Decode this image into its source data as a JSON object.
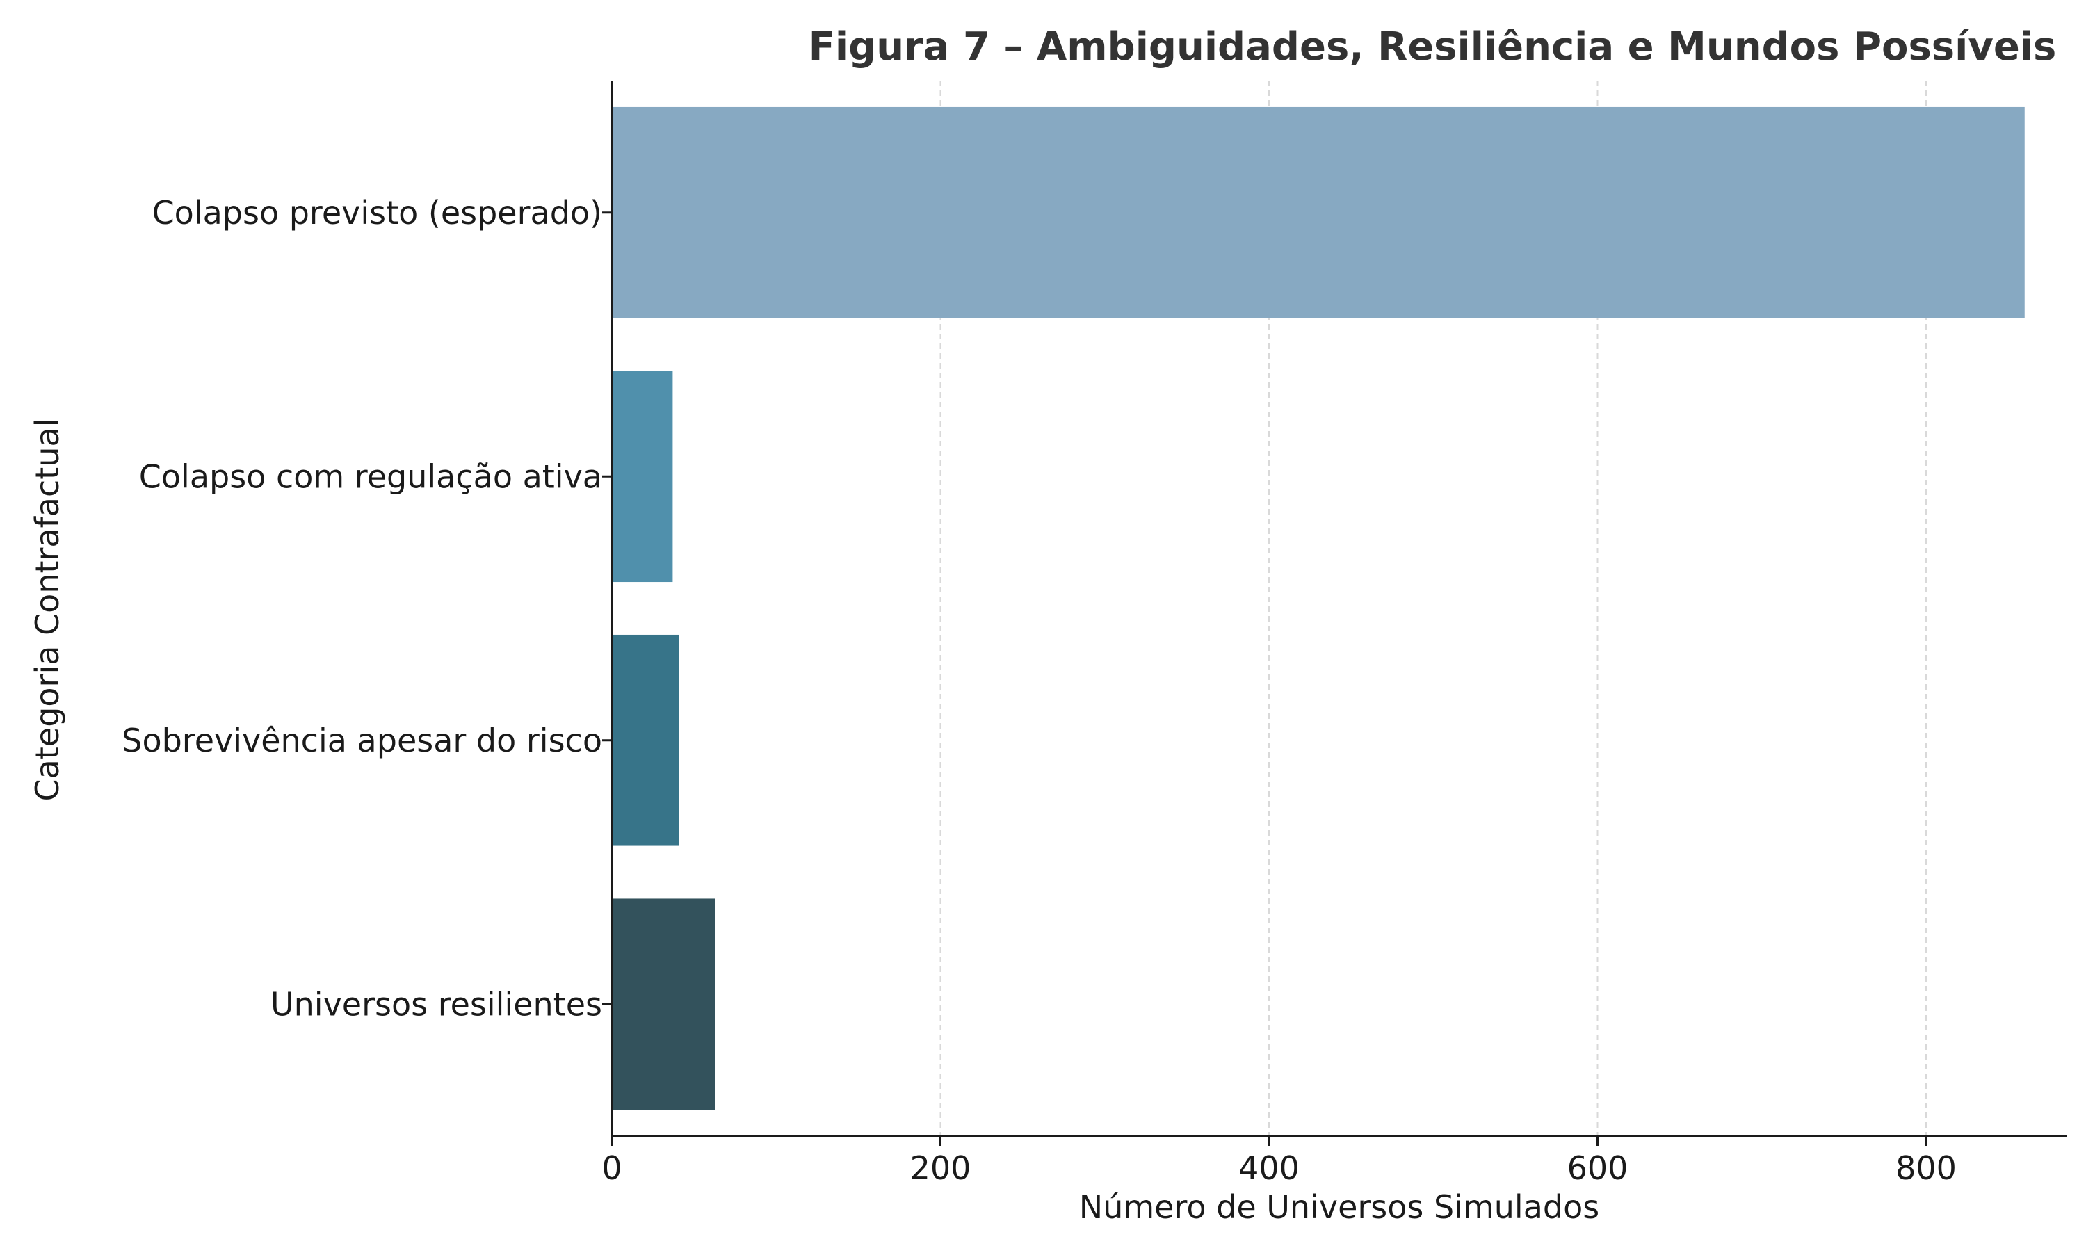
{
  "chart_data": {
    "type": "bar",
    "orientation": "horizontal",
    "title": "Figura 7 – Ambiguidades, Resiliência e Mundos Possíveis",
    "xlabel": "Número de Universos Simulados",
    "ylabel": "Categoria Contrafactual",
    "categories": [
      "Colapso previsto (esperado)",
      "Colapso com regulação ativa",
      "Sobrevivência apesar do risco",
      "Universos resilientes"
    ],
    "values": [
      860,
      37,
      41,
      63
    ],
    "xlim": [
      0,
      900
    ],
    "xticks": [
      0,
      200,
      400,
      600,
      800
    ],
    "xtick_labels": [
      "0",
      "200",
      "400",
      "600",
      "800"
    ],
    "grid": "x-dashed",
    "colors": [
      "#87a9c2",
      "#5090ac",
      "#377489",
      "#33525c"
    ]
  }
}
